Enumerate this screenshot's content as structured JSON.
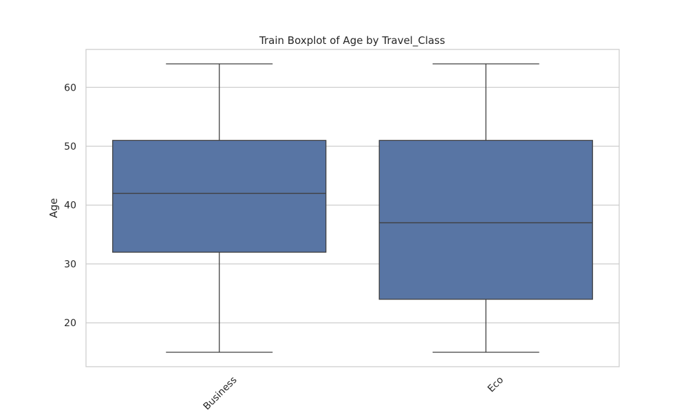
{
  "chart_data": {
    "type": "boxplot",
    "title": "Train Boxplot of Age by Travel_Class",
    "xlabel": "",
    "ylabel": "Age",
    "categories": [
      "Business",
      "Eco"
    ],
    "boxes": [
      {
        "category": "Business",
        "whisker_low": 15,
        "q1": 32,
        "median": 42,
        "q3": 51,
        "whisker_high": 64
      },
      {
        "category": "Eco",
        "whisker_low": 15,
        "q1": 24,
        "median": 37,
        "q3": 51,
        "whisker_high": 64
      }
    ],
    "yticks": [
      20,
      30,
      40,
      50,
      60
    ],
    "ylim": [
      12.55,
      66.45
    ],
    "grid": true,
    "colors": {
      "box_fill": "#5875a4",
      "line": "#3f3f3f",
      "grid": "#cccccc",
      "frame": "#cccccc"
    }
  }
}
